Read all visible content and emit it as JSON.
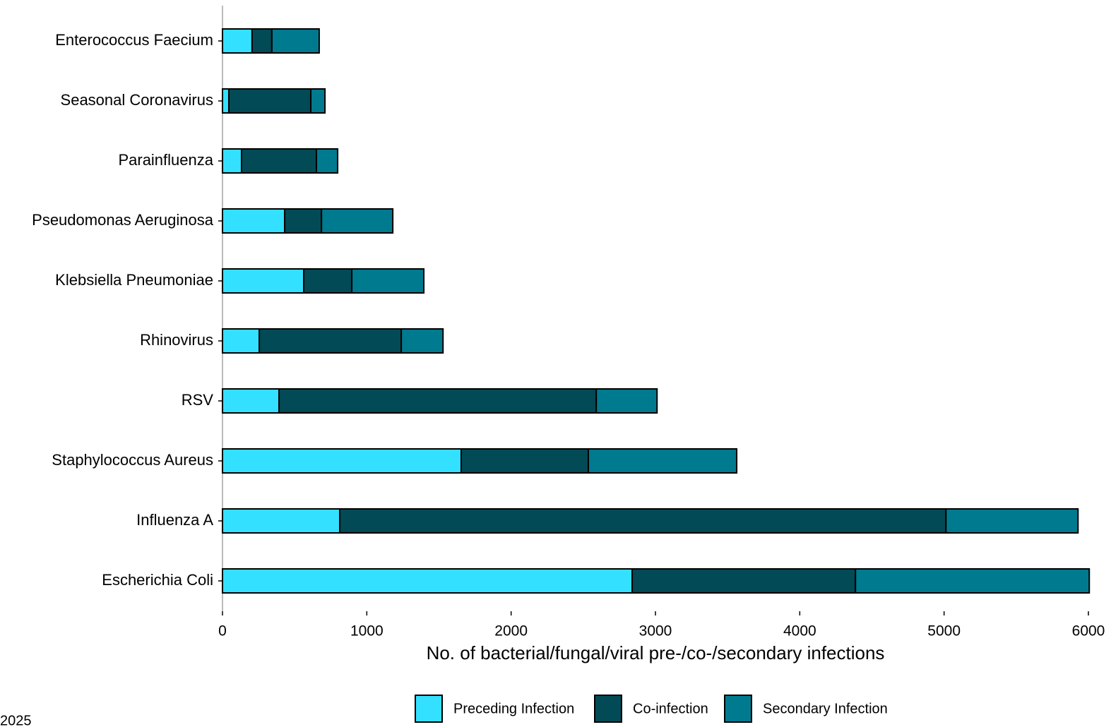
{
  "chart_data": {
    "type": "stacked-barh",
    "xlabel": "No. of bacterial/fungal/viral pre-/co-/secondary infections",
    "caption": "2025",
    "categories": [
      "Enterococcus Faecium",
      "Seasonal Coronavirus",
      "Parainfluenza",
      "Pseudomonas Aeruginosa",
      "Klebsiella Pneumoniae",
      "Rhinovirus",
      "RSV",
      "Staphylococcus Aureus",
      "Influenza A",
      "Escherichia Coli"
    ],
    "series": [
      {
        "name": "Preceding Infection",
        "color": "#33e0ff",
        "values": [
          205,
          44,
          132,
          431,
          563,
          255,
          392,
          1654,
          813,
          2839
        ]
      },
      {
        "name": "Co-infection",
        "color": "#024a55",
        "values": [
          137,
          568,
          519,
          255,
          333,
          984,
          2198,
          881,
          4200,
          1547
        ]
      },
      {
        "name": "Secondary Infection",
        "color": "#007a8f",
        "values": [
          328,
          98,
          147,
          494,
          499,
          289,
          421,
          1028,
          915,
          1620
        ]
      }
    ],
    "xlim": [
      0,
      6000
    ],
    "xticks": [
      0,
      1000,
      2000,
      3000,
      4000,
      5000,
      6000
    ],
    "legend": "bottom"
  }
}
